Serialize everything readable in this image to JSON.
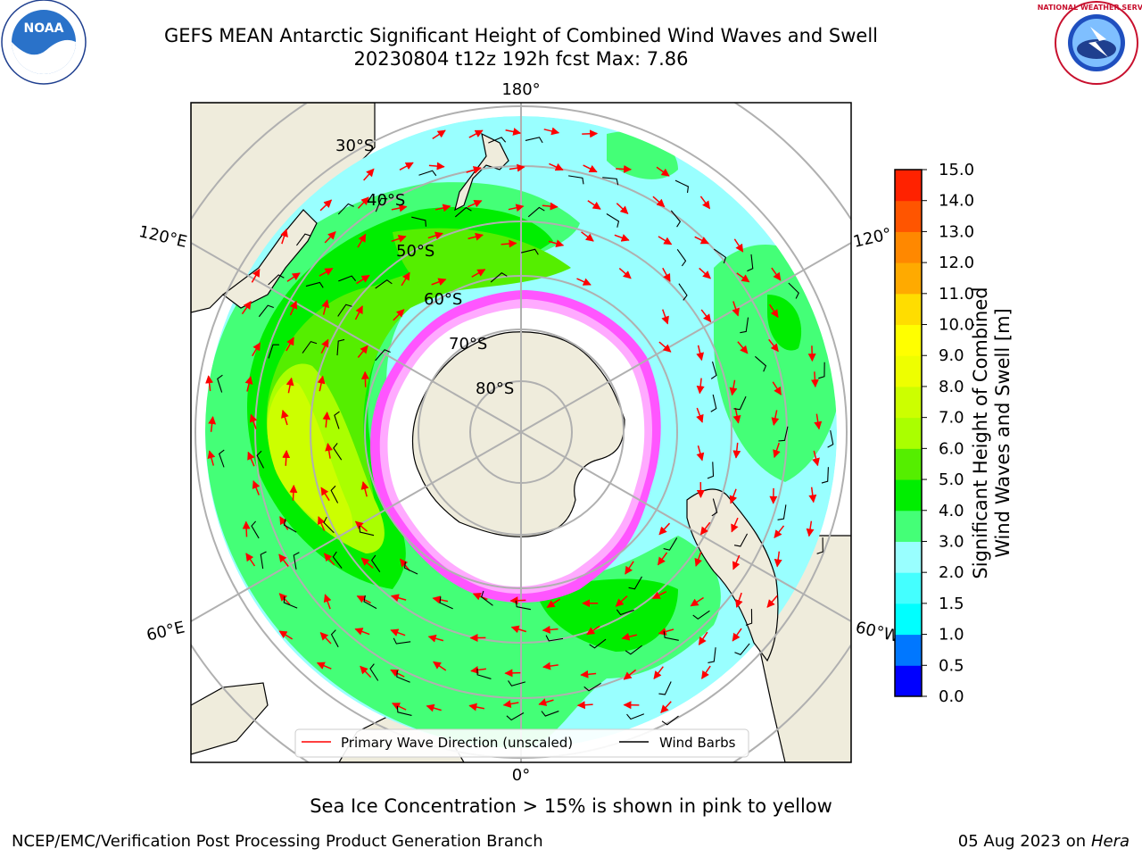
{
  "title": {
    "line1": "GEFS MEAN Antarctic Significant Height of Combined Wind Waves and Swell",
    "line2": "20230804 t12z 192h fcst   Max: 7.86"
  },
  "map": {
    "projection": "south-polar-stereographic",
    "meridian_labels": {
      "top": "180°",
      "bottom": "0°",
      "left_upper": "120°E",
      "left_lower": "60°E",
      "right_upper": "120°",
      "right_lower": "60°W"
    },
    "parallel_labels": [
      "30°S",
      "40°S",
      "50°S",
      "60°S",
      "70°S",
      "80°S"
    ],
    "colors": {
      "land": "#efecdc",
      "ice_edge_pink": "#ff55ff",
      "arrows": "#ff0000",
      "barbs": "#000000",
      "grid": "#b0b0b0"
    }
  },
  "legend": {
    "primary_wave_label": "Primary Wave Direction (unscaled)",
    "wind_barbs_label": "Wind Barbs"
  },
  "colorbar": {
    "label_line1": "Significant Height of Combined",
    "label_line2": "Wind Waves and Swell [m]",
    "ticks": [
      "0.0",
      "0.5",
      "1.0",
      "1.5",
      "2.0",
      "3.0",
      "4.0",
      "5.0",
      "6.0",
      "7.0",
      "8.0",
      "9.0",
      "10.0",
      "11.0",
      "12.0",
      "13.0",
      "14.0",
      "15.0"
    ],
    "colors": [
      "#0000ff",
      "#0077ff",
      "#00ffff",
      "#44ffff",
      "#99ffff",
      "#44ff77",
      "#00ee00",
      "#55ee00",
      "#aaff00",
      "#ccff00",
      "#eeff00",
      "#ffff00",
      "#ffdd00",
      "#ffaa00",
      "#ff8800",
      "#ff5500",
      "#ff2200"
    ]
  },
  "sea_ice_note": "Sea Ice Concentration > 15% is shown in pink to yellow",
  "footer": {
    "left": "NCEP/EMC/Verification Post Processing Product Generation Branch",
    "right_date": "05 Aug 2023 on",
    "right_machine": "Hera"
  },
  "logos": {
    "noaa_text": "NOAA",
    "nws_text": "NATIONAL WEATHER SERVICE"
  }
}
